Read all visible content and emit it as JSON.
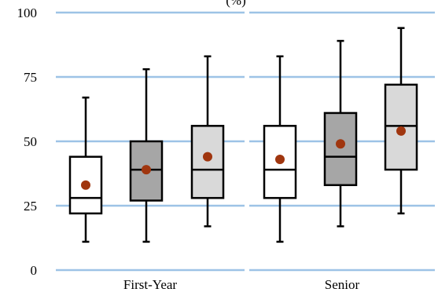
{
  "chart_data": {
    "type": "box",
    "title_fragment": "(%)",
    "ylim": [
      0,
      100
    ],
    "yticks": [
      0,
      25,
      50,
      75,
      100
    ],
    "grid": true,
    "groups": [
      "First-Year",
      "Senior"
    ],
    "series_colors": [
      "#ffffff",
      "#a6a6a6",
      "#d9d9d9"
    ],
    "mean_color": "#a0360f",
    "grid_color": "#9dc3e6",
    "boxes": [
      {
        "group": "First-Year",
        "series": 0,
        "min": 11,
        "q1": 22,
        "median": 28,
        "q3": 44,
        "max": 67,
        "mean": 33
      },
      {
        "group": "First-Year",
        "series": 1,
        "min": 11,
        "q1": 27,
        "median": 39,
        "q3": 50,
        "max": 78,
        "mean": 39
      },
      {
        "group": "First-Year",
        "series": 2,
        "min": 17,
        "q1": 28,
        "median": 39,
        "q3": 56,
        "max": 83,
        "mean": 44
      },
      {
        "group": "Senior",
        "series": 0,
        "min": 11,
        "q1": 28,
        "median": 39,
        "q3": 56,
        "max": 83,
        "mean": 43
      },
      {
        "group": "Senior",
        "series": 1,
        "min": 17,
        "q1": 33,
        "median": 44,
        "q3": 61,
        "max": 89,
        "mean": 49
      },
      {
        "group": "Senior",
        "series": 2,
        "min": 22,
        "q1": 39,
        "median": 56,
        "q3": 72,
        "max": 94,
        "mean": 54
      }
    ]
  }
}
